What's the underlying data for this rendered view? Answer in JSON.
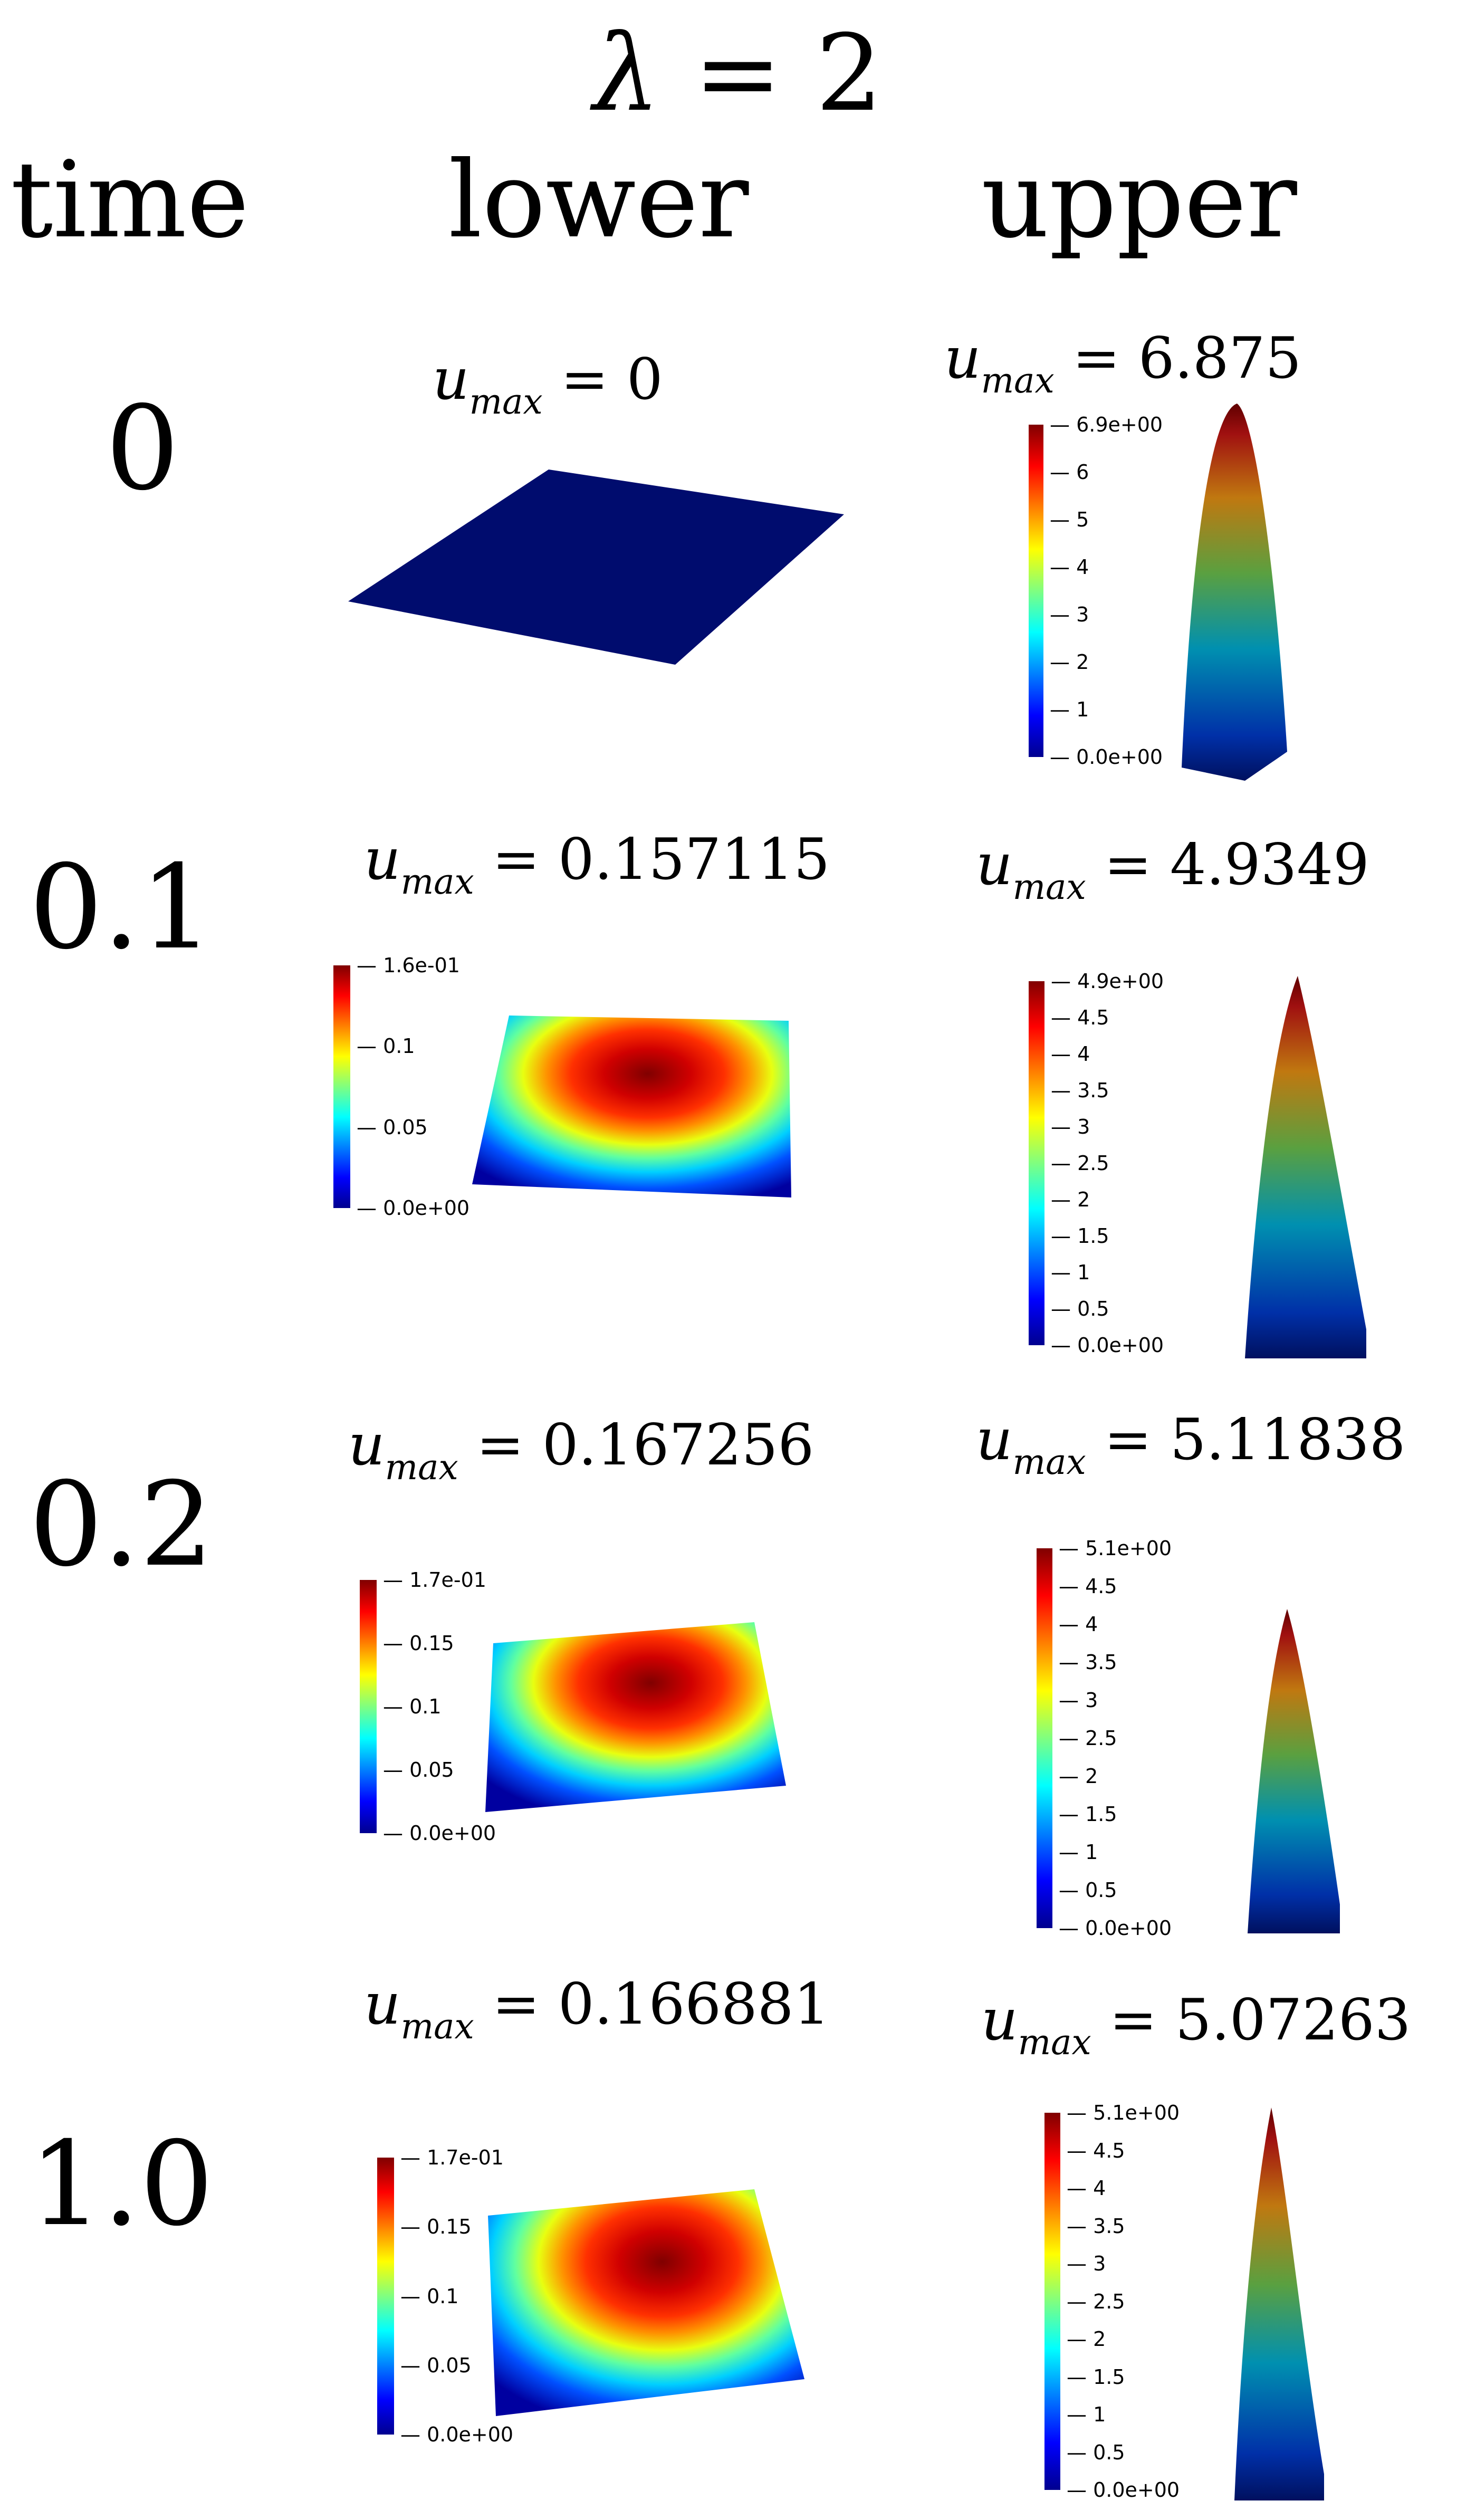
{
  "title": {
    "lambda_symbol": "λ",
    "rest": " = 2"
  },
  "column_headers": {
    "time": "time",
    "lower": "lower",
    "upper": "upper"
  },
  "rows": [
    {
      "time": "0",
      "lower": {
        "umax_label": "u",
        "umax_sub": "max",
        "umax_value": " = 0",
        "colorbar": null
      },
      "upper": {
        "umax_label": "u",
        "umax_sub": "max",
        "umax_value": " = 6.875",
        "colorbar": [
          "6.9e+00",
          "6",
          "5",
          "4",
          "3",
          "2",
          "1",
          "0.0e+00"
        ]
      }
    },
    {
      "time": "0.1",
      "lower": {
        "umax_label": "u",
        "umax_sub": "max",
        "umax_value": " = 0.157115",
        "colorbar": [
          "1.6e-01",
          "0.1",
          "0.05",
          "0.0e+00"
        ]
      },
      "upper": {
        "umax_label": "u",
        "umax_sub": "max",
        "umax_value": " = 4.9349",
        "colorbar": [
          "4.9e+00",
          "4.5",
          "4",
          "3.5",
          "3",
          "2.5",
          "2",
          "1.5",
          "1",
          "0.5",
          "0.0e+00"
        ]
      }
    },
    {
      "time": "0.2",
      "lower": {
        "umax_label": "u",
        "umax_sub": "max",
        "umax_value": " = 0.167256",
        "colorbar": [
          "1.7e-01",
          "0.15",
          "0.1",
          "0.05",
          "0.0e+00"
        ]
      },
      "upper": {
        "umax_label": "u",
        "umax_sub": "max",
        "umax_value": " = 5.11838",
        "colorbar": [
          "5.1e+00",
          "4.5",
          "4",
          "3.5",
          "3",
          "2.5",
          "2",
          "1.5",
          "1",
          "0.5",
          "0.0e+00"
        ]
      }
    },
    {
      "time": "1.0",
      "lower": {
        "umax_label": "u",
        "umax_sub": "max",
        "umax_value": " = 0.166881",
        "colorbar": [
          "1.7e-01",
          "0.15",
          "0.1",
          "0.05",
          "0.0e+00"
        ]
      },
      "upper": {
        "umax_label": "u",
        "umax_sub": "max",
        "umax_value": " = 5.07263",
        "colorbar": [
          "5.1e+00",
          "4.5",
          "4",
          "3.5",
          "3",
          "2.5",
          "2",
          "1.5",
          "1",
          "0.5",
          "0.0e+00"
        ]
      }
    }
  ],
  "colormap": "jet"
}
